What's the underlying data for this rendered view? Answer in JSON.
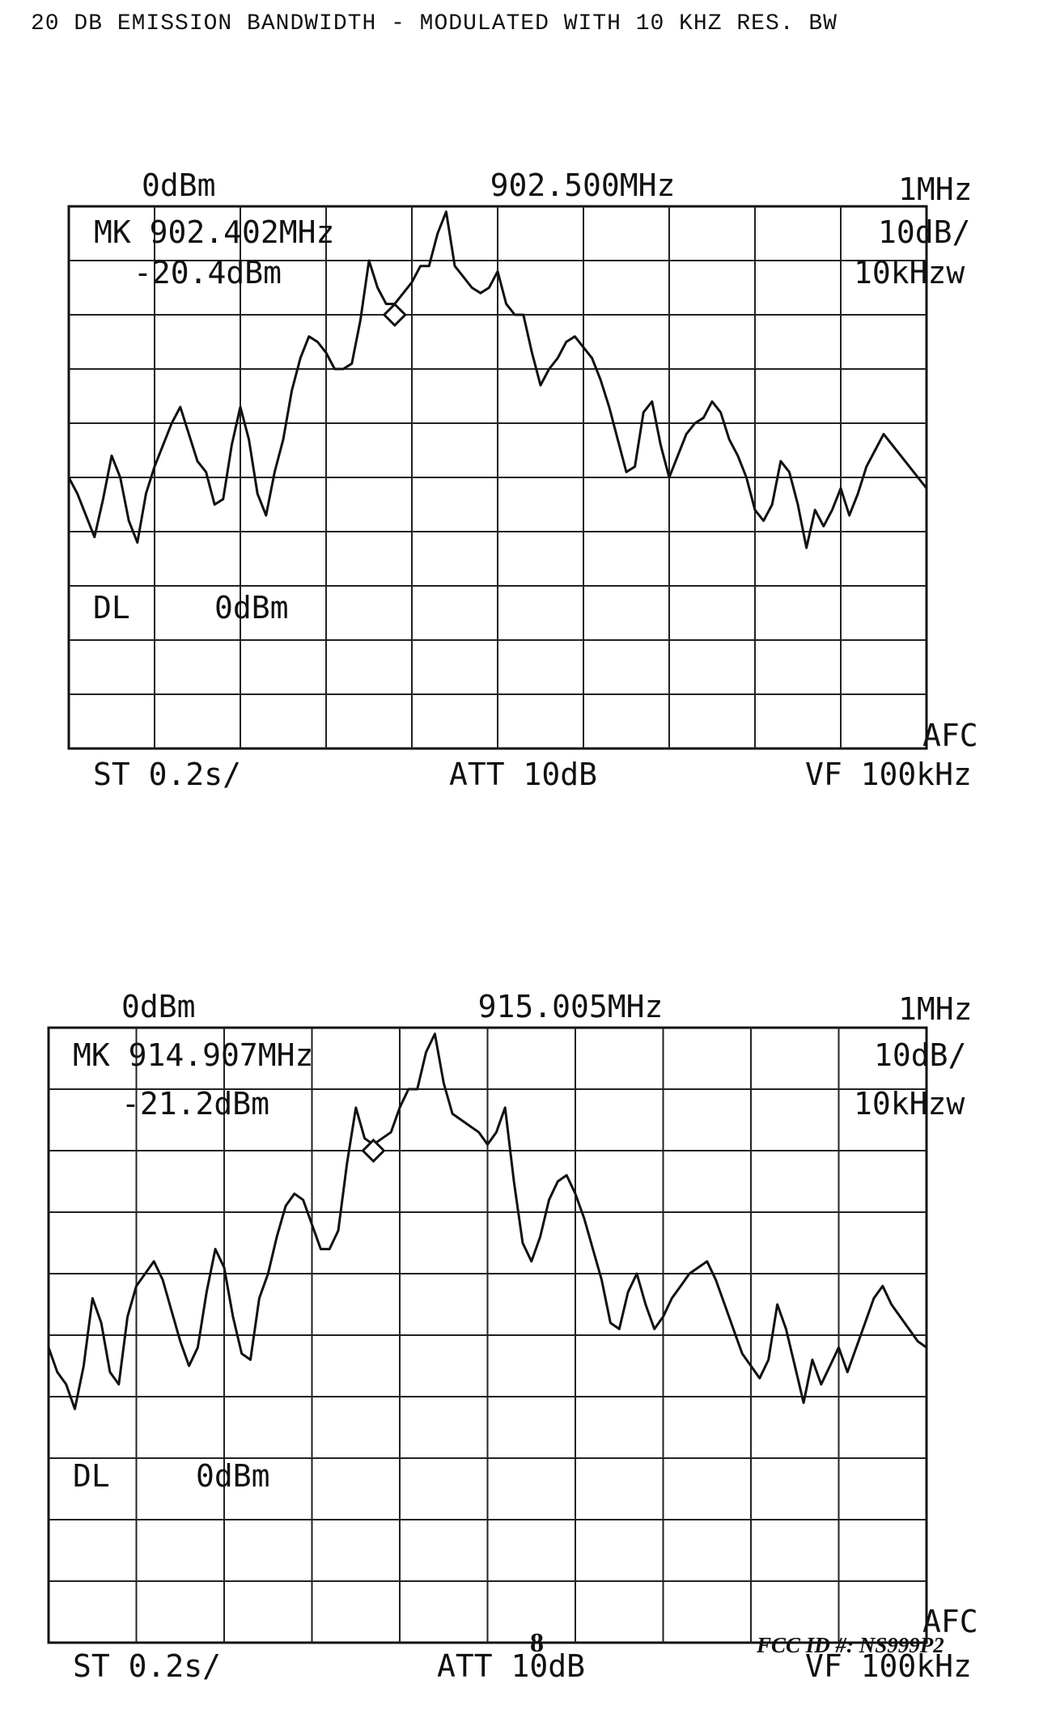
{
  "page": {
    "title": "20  DB EMISSION BANDWIDTH - MODULATED WITH 10 KHZ RES. BW",
    "page_number": "8",
    "fcc_id": "FCC ID #: NS999P2"
  },
  "chart_data": [
    {
      "type": "line",
      "ref_level": "0dBm",
      "center_freq": "902.500MHz",
      "span": "1MHz",
      "scale": "10dB/",
      "rbw": "10kHzw",
      "marker_freq": "MK  902.402MHz",
      "marker_level": "-20.4dBm",
      "display_line": "DL",
      "display_line_level": "0dBm",
      "sweep_time": "ST 0.2s/",
      "attenuation": "ATT 10dB",
      "video_filter": "VF 100kHz",
      "afc": "AFC",
      "marker_index": 4,
      "series": [
        {
          "x": [
            0,
            0.1,
            0.2,
            0.3,
            0.4,
            0.5,
            0.6,
            0.7,
            0.8,
            0.9,
            1.0,
            1.1,
            1.2,
            1.3,
            1.4,
            1.5,
            1.6,
            1.7,
            1.8,
            1.9,
            2.0,
            2.1,
            2.2,
            2.3,
            2.4,
            2.5,
            2.6,
            2.7,
            2.8,
            2.9,
            3.0,
            3.1,
            3.2,
            3.3,
            3.4,
            3.5,
            3.6,
            3.7,
            3.8,
            3.9,
            4.0,
            4.1,
            4.2,
            4.3,
            4.4,
            4.5,
            4.6,
            4.7,
            4.8,
            4.9,
            5.0,
            5.1,
            5.2,
            5.3,
            5.4,
            5.5,
            5.6,
            5.7,
            5.8,
            5.9,
            6.0,
            6.1,
            6.2,
            6.3,
            6.4,
            6.5,
            6.6,
            6.7,
            6.8,
            6.9,
            7.0,
            7.1,
            7.2,
            7.3,
            7.4,
            7.5,
            7.6,
            7.7,
            7.8,
            7.9,
            8.0,
            8.1,
            8.2,
            8.3,
            8.4,
            8.5,
            8.6,
            8.7,
            8.8,
            8.9,
            9.0,
            9.1,
            9.2,
            9.3,
            9.4,
            9.5,
            9.6,
            9.7,
            9.8,
            9.9,
            10.0
          ],
          "y": [
            -50,
            -53,
            -57,
            -61,
            -54,
            -46,
            -50,
            -58,
            -62,
            -53,
            -48,
            -44,
            -40,
            -37,
            -42,
            -47,
            -49,
            -55,
            -54,
            -44,
            -37,
            -43,
            -53,
            -57,
            -49,
            -43,
            -34,
            -28,
            -24,
            -25,
            -27,
            -30,
            -30,
            -29,
            -21,
            -10,
            -15,
            -18,
            -18,
            -16,
            -14,
            -11,
            -11,
            -5,
            -1,
            -11,
            -13,
            -15,
            -16,
            -15,
            -12,
            -18,
            -20,
            -20,
            -27,
            -33,
            -30,
            -28,
            -25,
            -24,
            -26,
            -28,
            -32,
            -37,
            -43,
            -49,
            -48,
            -38,
            -36,
            -44,
            -50,
            -46,
            -42,
            -40,
            -39,
            -36,
            -38,
            -43,
            -46,
            -50,
            -56,
            -58,
            -55,
            -47,
            -49,
            -55,
            -63,
            -56,
            -59,
            -56,
            -52,
            -57,
            -53,
            -48,
            -45,
            -42,
            -44,
            -46,
            -48,
            -50,
            -52
          ]
        }
      ]
    },
    {
      "type": "line",
      "ref_level": "0dBm",
      "center_freq": "915.005MHz",
      "span": "1MHz",
      "scale": "10dB/",
      "rbw": "10kHzw",
      "marker_freq": "MK  914.907MHz",
      "marker_level": "-21.2dBm",
      "display_line": "DL",
      "display_line_level": "0dBm",
      "sweep_time": "ST 0.2s/",
      "attenuation": "ATT 10dB",
      "video_filter": "VF 100kHz",
      "afc": "AFC",
      "marker_index": 4,
      "series": [
        {
          "x": [
            0,
            0.1,
            0.2,
            0.3,
            0.4,
            0.5,
            0.6,
            0.7,
            0.8,
            0.9,
            1.0,
            1.1,
            1.2,
            1.3,
            1.4,
            1.5,
            1.6,
            1.7,
            1.8,
            1.9,
            2.0,
            2.1,
            2.2,
            2.3,
            2.4,
            2.5,
            2.6,
            2.7,
            2.8,
            2.9,
            3.0,
            3.1,
            3.2,
            3.3,
            3.4,
            3.5,
            3.6,
            3.7,
            3.8,
            3.9,
            4.0,
            4.1,
            4.2,
            4.3,
            4.4,
            4.5,
            4.6,
            4.7,
            4.8,
            4.9,
            5.0,
            5.1,
            5.2,
            5.3,
            5.4,
            5.5,
            5.6,
            5.7,
            5.8,
            5.9,
            6.0,
            6.1,
            6.2,
            6.3,
            6.4,
            6.5,
            6.6,
            6.7,
            6.8,
            6.9,
            7.0,
            7.1,
            7.2,
            7.3,
            7.4,
            7.5,
            7.6,
            7.7,
            7.8,
            7.9,
            8.0,
            8.1,
            8.2,
            8.3,
            8.4,
            8.5,
            8.6,
            8.7,
            8.8,
            8.9,
            9.0,
            9.1,
            9.2,
            9.3,
            9.4,
            9.5,
            9.6,
            9.7,
            9.8,
            9.9,
            10.0
          ],
          "y": [
            -52,
            -56,
            -58,
            -62,
            -55,
            -44,
            -48,
            -56,
            -58,
            -47,
            -42,
            -40,
            -38,
            -41,
            -46,
            -51,
            -55,
            -52,
            -43,
            -36,
            -39,
            -47,
            -53,
            -54,
            -44,
            -40,
            -34,
            -29,
            -27,
            -28,
            -32,
            -36,
            -36,
            -33,
            -22,
            -13,
            -18,
            -19,
            -18,
            -17,
            -13,
            -10,
            -10,
            -4,
            -1,
            -9,
            -14,
            -15,
            -16,
            -17,
            -19,
            -17,
            -13,
            -25,
            -35,
            -38,
            -34,
            -28,
            -25,
            -24,
            -27,
            -31,
            -36,
            -41,
            -48,
            -49,
            -43,
            -40,
            -45,
            -49,
            -47,
            -44,
            -42,
            -40,
            -39,
            -38,
            -41,
            -45,
            -49,
            -53,
            -55,
            -57,
            -54,
            -45,
            -49,
            -55,
            -61,
            -54,
            -58,
            -55,
            -52,
            -56,
            -52,
            -48,
            -44,
            -42,
            -45,
            -47,
            -49,
            -51,
            -52
          ]
        }
      ]
    }
  ]
}
